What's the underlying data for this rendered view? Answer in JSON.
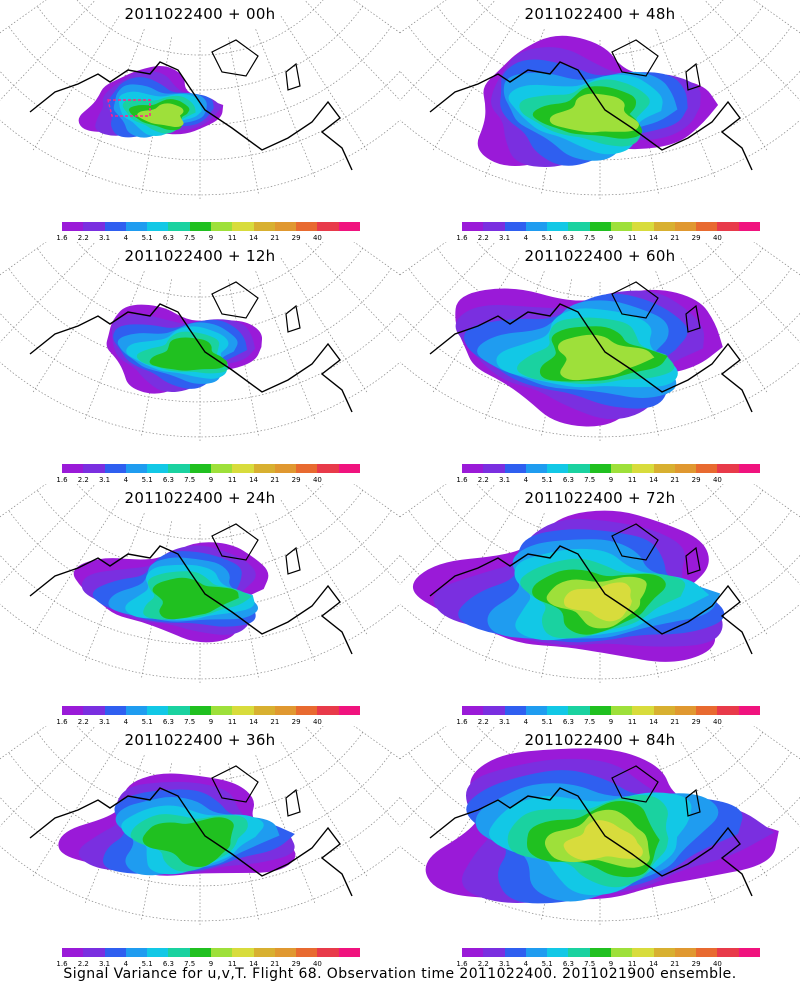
{
  "figure": {
    "caption": "Signal Variance for u,v,T. Flight 68. Observation time 2011022400. 2011021900 ensemble."
  },
  "colorbar": {
    "colors": [
      "#9a1ad8",
      "#7a2fe0",
      "#2f5ff0",
      "#1f9cf0",
      "#12c8e6",
      "#1ad2a0",
      "#20c020",
      "#9ee03a",
      "#d8dc3c",
      "#d8b030",
      "#e09830",
      "#e86a30",
      "#e83a4a",
      "#f0137e"
    ],
    "tick_labels": [
      "1.6",
      "2.2",
      "3.1",
      "4",
      "5.1",
      "6.3",
      "7.5",
      "9",
      "11",
      "14",
      "21",
      "29",
      "40"
    ]
  },
  "chart_data": [
    {
      "type": "heatmap",
      "title": "2011022400 + 00h",
      "lead_hours": 0,
      "scale_max": "9"
    },
    {
      "type": "heatmap",
      "title": "2011022400 + 48h",
      "lead_hours": 48,
      "scale_max": "9"
    },
    {
      "type": "heatmap",
      "title": "2011022400 + 12h",
      "lead_hours": 12,
      "scale_max": "7.5"
    },
    {
      "type": "heatmap",
      "title": "2011022400 + 60h",
      "lead_hours": 60,
      "scale_max": "9"
    },
    {
      "type": "heatmap",
      "title": "2011022400 + 24h",
      "lead_hours": 24,
      "scale_max": "7.5"
    },
    {
      "type": "heatmap",
      "title": "2011022400 + 72h",
      "lead_hours": 72,
      "scale_max": "11"
    },
    {
      "type": "heatmap",
      "title": "2011022400 + 36h",
      "lead_hours": 36,
      "scale_max": "7.5"
    },
    {
      "type": "heatmap",
      "title": "2011022400 + 84h",
      "lead_hours": 84,
      "scale_max": "11"
    }
  ]
}
